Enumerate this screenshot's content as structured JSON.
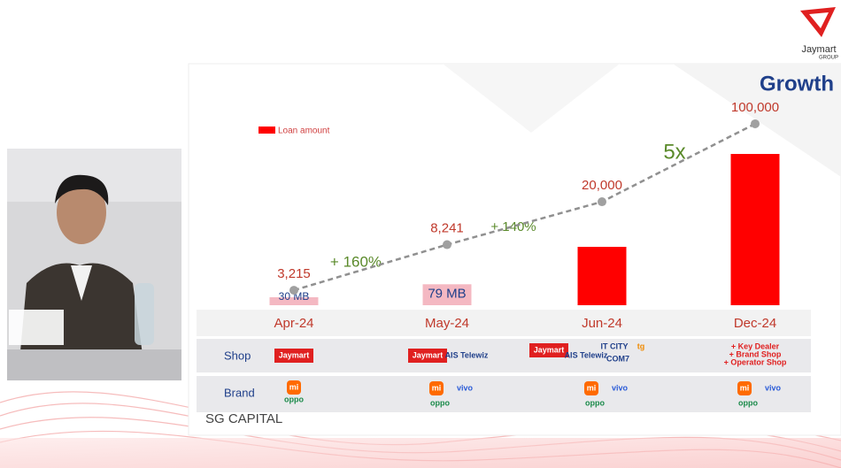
{
  "chart_data": {
    "type": "bar",
    "title": "Growth",
    "categories": [
      "Apr-24",
      "May-24",
      "Jun-24",
      "Dec-24"
    ],
    "series": [
      {
        "name": "Loan amount",
        "type": "bar",
        "colors": [
          "#f4b8c2",
          "#f4b8c2",
          "#ff0000",
          "#ff0000"
        ],
        "values": [
          30,
          79,
          220,
          570
        ],
        "value_labels": [
          "30 MB",
          "79 MB",
          null,
          null
        ]
      },
      {
        "type": "line",
        "axis": "y2",
        "color": "#909090",
        "values": [
          3215,
          8241,
          20000,
          100000
        ],
        "value_labels": [
          "3,215",
          "8,241",
          "20,000",
          "100,000"
        ]
      }
    ],
    "ylim": [
      0,
      700
    ],
    "y2lim": [
      1000,
      200000
    ],
    "y2log": true,
    "annotations": [
      "+ 160%",
      "+ 140%",
      "5x"
    ]
  },
  "rows": {
    "shop": {
      "label": "Shop",
      "cells": [
        [
          "Jaymart"
        ],
        [
          "Jaymart",
          "AIS Telewiz"
        ],
        [
          "Jaymart",
          "AIS Telewiz",
          "IT CITY",
          "tg",
          "COM7"
        ],
        [
          "+ Key Dealer",
          "+ Brand Shop",
          "+ Operator Shop"
        ]
      ]
    },
    "brand": {
      "label": "Brand",
      "cells": [
        [
          "mi",
          "oppo"
        ],
        [
          "mi",
          "vivo",
          "oppo"
        ],
        [
          "mi",
          "vivo",
          "oppo"
        ],
        [
          "mi",
          "vivo",
          "oppo"
        ]
      ]
    }
  },
  "footer": "SG CAPITAL",
  "corner_logo": {
    "name": "Jaymart",
    "sub": "GROUP"
  }
}
